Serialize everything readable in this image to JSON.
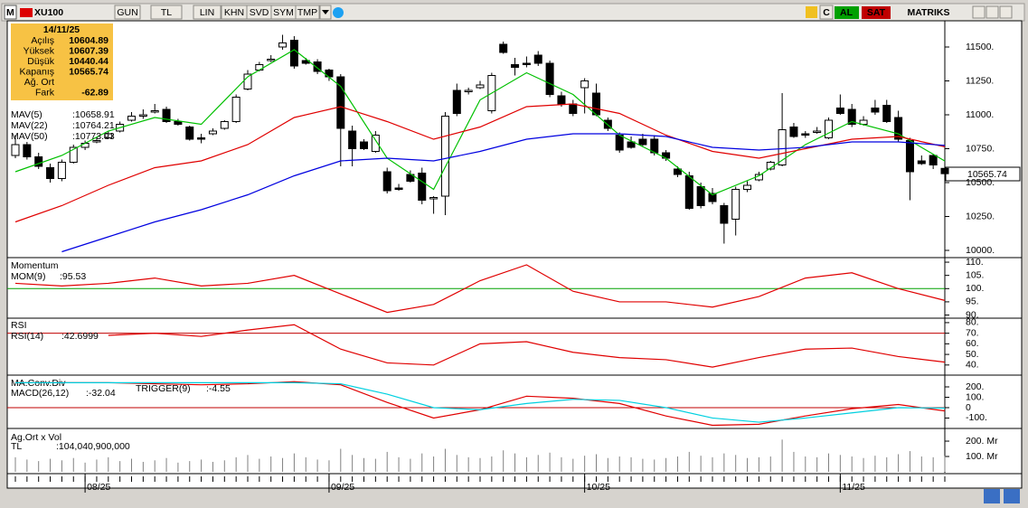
{
  "toolbar": {
    "logo": "M",
    "symbol": "XU100",
    "buttons": [
      "GUN",
      "TL",
      "LIN",
      "KHN",
      "SVD",
      "SYM",
      "TMP"
    ],
    "c": "C",
    "buy": "AL",
    "sell": "SAT",
    "brand": "MATRIKS"
  },
  "info": {
    "date": "14/11/25",
    "rows": [
      {
        "label": "Açılış",
        "value": 10604.89
      },
      {
        "label": "Yüksek",
        "value": 10607.39
      },
      {
        "label": "Düşük",
        "value": 10440.44
      },
      {
        "label": "Kapanış",
        "value": 10565.74
      },
      {
        "label": "Ağ. Ort"
      },
      {
        "label": "Fark",
        "value": -62.89
      }
    ]
  },
  "chart_data": [
    {
      "type": "candlestick",
      "candles": [
        [
          10700,
          10850,
          10680,
          10780
        ],
        [
          10780,
          10800,
          10670,
          10690
        ],
        [
          10690,
          10720,
          10600,
          10620
        ],
        [
          10610,
          10640,
          10500,
          10530
        ],
        [
          10530,
          10670,
          10510,
          10650
        ],
        [
          10650,
          10780,
          10640,
          10760
        ],
        [
          10760,
          10810,
          10740,
          10790
        ],
        [
          10800,
          10830,
          10790,
          10810
        ],
        [
          10830,
          10880,
          10820,
          10860
        ],
        [
          10880,
          10950,
          10870,
          10930
        ],
        [
          10960,
          11020,
          10950,
          10990
        ],
        [
          10990,
          11040,
          10970,
          11000
        ],
        [
          11020,
          11080,
          11010,
          11030
        ],
        [
          11040,
          11060,
          10940,
          10950
        ],
        [
          10950,
          10970,
          10920,
          10930
        ],
        [
          10910,
          10920,
          10810,
          10820
        ],
        [
          10830,
          10860,
          10790,
          10820
        ],
        [
          10860,
          10900,
          10850,
          10880
        ],
        [
          10900,
          10960,
          10890,
          10950
        ],
        [
          10950,
          11150,
          10940,
          11130
        ],
        [
          11190,
          11330,
          11180,
          11300
        ],
        [
          11330,
          11390,
          11320,
          11370
        ],
        [
          11400,
          11440,
          11390,
          11410
        ],
        [
          11500,
          11590,
          11480,
          11530
        ],
        [
          11550,
          11580,
          11340,
          11360
        ],
        [
          11400,
          11420,
          11370,
          11380
        ],
        [
          11390,
          11410,
          11300,
          11320
        ],
        [
          11330,
          11340,
          11250,
          11280
        ],
        [
          11280,
          11300,
          10620,
          10900
        ],
        [
          10880,
          10920,
          10620,
          10750
        ],
        [
          10800,
          10820,
          10740,
          10750
        ],
        [
          10730,
          10880,
          10720,
          10850
        ],
        [
          10580,
          10610,
          10420,
          10440
        ],
        [
          10460,
          10490,
          10440,
          10450
        ],
        [
          10560,
          10590,
          10500,
          10510
        ],
        [
          10570,
          10610,
          10340,
          10370
        ],
        [
          10380,
          10400,
          10270,
          10390
        ],
        [
          10400,
          11020,
          10260,
          10990
        ],
        [
          11180,
          11230,
          10990,
          11010
        ],
        [
          11170,
          11200,
          11150,
          11180
        ],
        [
          11200,
          11250,
          11190,
          11220
        ],
        [
          11030,
          11310,
          11010,
          11290
        ],
        [
          11520,
          11540,
          11450,
          11460
        ],
        [
          11370,
          11420,
          11290,
          11350
        ],
        [
          11380,
          11430,
          11350,
          11370
        ],
        [
          11440,
          11470,
          11360,
          11380
        ],
        [
          11380,
          11400,
          11130,
          11150
        ],
        [
          11140,
          11170,
          11060,
          11080
        ],
        [
          11080,
          11110,
          10990,
          11010
        ],
        [
          11200,
          11270,
          11010,
          11250
        ],
        [
          11160,
          11230,
          10990,
          11000
        ],
        [
          10960,
          10980,
          10880,
          10900
        ],
        [
          10850,
          10870,
          10720,
          10740
        ],
        [
          10800,
          10840,
          10750,
          10760
        ],
        [
          10820,
          10860,
          10770,
          10780
        ],
        [
          10820,
          10850,
          10700,
          10720
        ],
        [
          10720,
          10740,
          10660,
          10680
        ],
        [
          10600,
          10620,
          10540,
          10560
        ],
        [
          10550,
          10580,
          10300,
          10310
        ],
        [
          10470,
          10500,
          10310,
          10330
        ],
        [
          10420,
          10460,
          10340,
          10360
        ],
        [
          10330,
          10350,
          10050,
          10200
        ],
        [
          10230,
          10470,
          10110,
          10450
        ],
        [
          10450,
          10510,
          10430,
          10480
        ],
        [
          10520,
          10580,
          10510,
          10560
        ],
        [
          10600,
          10660,
          10590,
          10650
        ],
        [
          10630,
          11160,
          10620,
          10890
        ],
        [
          10910,
          10940,
          10830,
          10840
        ],
        [
          10860,
          10880,
          10830,
          10850
        ],
        [
          10870,
          10910,
          10860,
          10880
        ],
        [
          10830,
          10980,
          10820,
          10960
        ],
        [
          11050,
          11150,
          11000,
          11010
        ],
        [
          11040,
          11080,
          10910,
          10930
        ],
        [
          10930,
          10990,
          10920,
          10960
        ],
        [
          11050,
          11110,
          11000,
          11020
        ],
        [
          11070,
          11110,
          10940,
          10950
        ],
        [
          10980,
          11030,
          10800,
          10820
        ],
        [
          10810,
          10830,
          10370,
          10580
        ],
        [
          10660,
          10700,
          10630,
          10640
        ],
        [
          10700,
          10710,
          10600,
          10630
        ],
        [
          10604.89,
          10607.39,
          10440.44,
          10565.74
        ]
      ],
      "x": [
        0,
        4,
        8,
        12,
        16,
        20,
        24,
        28,
        32,
        36,
        40,
        44,
        48,
        52,
        56,
        60,
        64,
        68,
        72,
        76,
        80
      ],
      "series": [
        {
          "name": "MAV(5)",
          "value_label": ":10658.91",
          "color": "#00c000",
          "values": [
            10580,
            10700,
            10880,
            10980,
            10930,
            11280,
            11480,
            11210,
            10680,
            10450,
            11110,
            11310,
            11150,
            10850,
            10680,
            10410,
            10550,
            10780,
            10950,
            10860,
            10658.91
          ]
        },
        {
          "name": "MAV(22)",
          "value_label": ":10764.21",
          "color": "#e00000",
          "values": [
            10210,
            10330,
            10480,
            10610,
            10660,
            10780,
            10980,
            11060,
            10950,
            10820,
            10910,
            11060,
            11080,
            11010,
            10850,
            10730,
            10680,
            10750,
            10820,
            10840,
            10764.21
          ]
        },
        {
          "name": "MAV(50)",
          "value_label": ":10773.93",
          "color": "#0000e0",
          "values": [
            null,
            9990,
            10100,
            10210,
            10300,
            10410,
            10550,
            10660,
            10680,
            10660,
            10730,
            10820,
            10860,
            10860,
            10840,
            10760,
            10740,
            10760,
            10800,
            10800,
            10773.93
          ]
        }
      ],
      "ylim": [
        9960,
        11680
      ],
      "yticks": [
        {
          "value": 11500,
          "label": "11500."
        },
        {
          "value": 11250,
          "label": "11250."
        },
        {
          "value": 11000,
          "label": "11000."
        },
        {
          "value": 10750,
          "label": "10750."
        },
        {
          "value": 10500,
          "label": "10500."
        },
        {
          "value": 10250,
          "label": "10250."
        },
        {
          "value": 10000,
          "label": "10000."
        }
      ]
    },
    {
      "type": "line",
      "title": "Momentum",
      "x": [
        0,
        4,
        8,
        12,
        16,
        20,
        24,
        28,
        32,
        36,
        40,
        44,
        48,
        52,
        56,
        60,
        64,
        68,
        72,
        76,
        80
      ],
      "series": [
        {
          "name": "MOM(9)",
          "value_label": ":95.53",
          "color": "#e00000",
          "values": [
            102,
            101,
            102,
            104,
            101,
            102,
            105,
            98,
            91,
            94,
            103,
            109,
            99,
            95,
            95,
            93,
            97,
            104,
            106,
            100,
            95.53
          ]
        }
      ],
      "hline": {
        "value": 100,
        "color": "#00a000"
      },
      "ylim": [
        89.5,
        110.7
      ],
      "yticks": [
        {
          "value": 110,
          "label": "110."
        },
        {
          "value": 105,
          "label": "105."
        },
        {
          "value": 100,
          "label": "100."
        },
        {
          "value": 95,
          "label": "95."
        },
        {
          "value": 90,
          "label": "90."
        }
      ]
    },
    {
      "type": "line",
      "title": "RSI",
      "x": [
        0,
        4,
        8,
        12,
        16,
        20,
        24,
        28,
        32,
        36,
        40,
        44,
        48,
        52,
        56,
        60,
        64,
        68,
        72,
        76,
        80
      ],
      "series": [
        {
          "name": "RSI(14)",
          "value_label": ":42.6999",
          "color": "#e00000",
          "values": [
            null,
            null,
            68,
            70,
            67,
            73,
            78,
            55,
            42,
            40,
            60,
            62,
            52,
            47,
            45,
            38,
            47,
            55,
            56,
            48,
            42.6999
          ]
        }
      ],
      "hline": {
        "value": 70,
        "color": "#c00000"
      },
      "ylim": [
        33,
        82.5
      ],
      "yticks": [
        {
          "value": 80,
          "label": "80."
        },
        {
          "value": 70,
          "label": "70."
        },
        {
          "value": 60,
          "label": "60."
        },
        {
          "value": 50,
          "label": "50."
        },
        {
          "value": 40,
          "label": "40."
        }
      ]
    },
    {
      "type": "line",
      "title": "MA.Conv.Div",
      "x": [
        0,
        4,
        8,
        12,
        16,
        20,
        24,
        28,
        32,
        36,
        40,
        44,
        48,
        52,
        56,
        60,
        64,
        68,
        72,
        76,
        80
      ],
      "series": [
        {
          "name": "MACD(26,12)",
          "value_label": ":-32.04",
          "color": "#e00000",
          "values": [
            240,
            240,
            240,
            230,
            220,
            230,
            250,
            220,
            50,
            -100,
            -20,
            110,
            90,
            40,
            -80,
            -170,
            -160,
            -80,
            -10,
            30,
            -32.04
          ]
        },
        {
          "name": "TRIGGER(9)",
          "value_label": ":-4.55",
          "color": "#00d0e0",
          "values": [
            240,
            240,
            240,
            240,
            240,
            240,
            240,
            230,
            130,
            0,
            -20,
            40,
            80,
            70,
            0,
            -100,
            -140,
            -100,
            -50,
            0,
            -4.55
          ]
        }
      ],
      "hline": {
        "value": 0,
        "color": "#c00000"
      },
      "ylim": [
        -183,
        287
      ],
      "yticks": [
        {
          "value": 200,
          "label": "200."
        },
        {
          "value": 100,
          "label": "100."
        },
        0,
        {
          "value": -100,
          "label": "-100."
        }
      ]
    },
    {
      "type": "bar",
      "title": "Ag.Ort x Vol",
      "series": [
        {
          "name": "TL",
          "value_label": ":104,040,900,000",
          "color": "#808080",
          "values": [
            95000000000.0,
            80000000000.0,
            70000000000.0,
            85000000000.0,
            75000000000.0,
            90000000000.0,
            60000000000.0,
            80000000000.0,
            95000000000.0,
            70000000000.0,
            85000000000.0,
            65000000000.0,
            75000000000.0,
            90000000000.0,
            60000000000.0,
            70000000000.0,
            80000000000.0,
            65000000000.0,
            75000000000.0,
            95000000000.0,
            110000000000.0,
            85000000000.0,
            100000000000.0,
            90000000000.0,
            120000000000.0,
            95000000000.0,
            80000000000.0,
            75000000000.0,
            150000000000.0,
            110000000000.0,
            90000000000.0,
            85000000000.0,
            130000000000.0,
            95000000000.0,
            85000000000.0,
            120000000000.0,
            100000000000.0,
            150000000000.0,
            110000000000.0,
            95000000000.0,
            90000000000.0,
            100000000000.0,
            140000000000.0,
            120000000000.0,
            95000000000.0,
            110000000000.0,
            125000000000.0,
            95000000000.0,
            85000000000.0,
            105000000000.0,
            115000000000.0,
            90000000000.0,
            100000000000.0,
            95000000000.0,
            85000000000.0,
            80000000000.0,
            90000000000.0,
            100000000000.0,
            130000000000.0,
            105000000000.0,
            95000000000.0,
            120000000000.0,
            110000000000.0,
            90000000000.0,
            95000000000.0,
            100000000000.0,
            210000000000.0,
            130000000000.0,
            100000000000.0,
            95000000000.0,
            120000000000.0,
            110000000000.0,
            100000000000.0,
            90000000000.0,
            105000000000.0,
            95000000000.0,
            115000000000.0,
            135000000000.0,
            100000000000.0,
            95000000000.0,
            104040900000
          ]
        }
      ],
      "ylim": [
        0,
        259000000000.0
      ],
      "yticks": [
        {
          "value": 200000000000.0,
          "label": "200. Mr"
        },
        {
          "value": 100000000000.0,
          "label": "100. Mr"
        }
      ],
      "xticks": [
        {
          "value": 6,
          "label": "08/25"
        },
        {
          "value": 27,
          "label": "09/25"
        },
        {
          "value": 49,
          "label": "10/25"
        },
        {
          "value": 71,
          "label": "11/25"
        }
      ]
    }
  ]
}
